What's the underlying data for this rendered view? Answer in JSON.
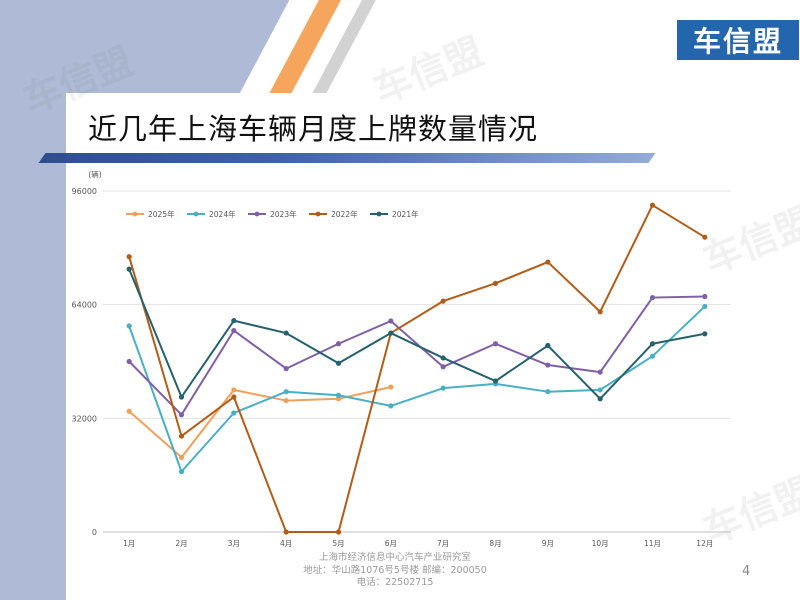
{
  "slide": {
    "title": "近几年上海车辆月度上牌数量情况",
    "logo": "车信盟",
    "watermark": "车信盟",
    "page_number": "4",
    "footer": {
      "line1": "上海市经济信息中心汽车产业研究室",
      "line2": "地址：华山路1076号5号楼    邮编：200050",
      "line3": "电话：22502715"
    }
  },
  "colors": {
    "band": "#aebad6",
    "logo_bg": "#2466ad",
    "accent_orange": "#f6a55c"
  },
  "chart_data": {
    "type": "line",
    "unit_label": "(辆)",
    "categories": [
      "1月",
      "2月",
      "3月",
      "4月",
      "5月",
      "6月",
      "7月",
      "8月",
      "9月",
      "10月",
      "11月",
      "12月"
    ],
    "ylim": [
      0,
      96000
    ],
    "yticks": [
      0,
      32000,
      64000,
      96000
    ],
    "ytick_labels": [
      "0",
      "32000",
      "64000",
      "96000"
    ],
    "grid": true,
    "legend_position": "top-left",
    "series": [
      {
        "name": "2025年",
        "color": "#f0a05a",
        "values": [
          34000,
          21000,
          40000,
          37000,
          37500,
          40800,
          null,
          null,
          null,
          null,
          null,
          null
        ]
      },
      {
        "name": "2024年",
        "color": "#4aafc4",
        "values": [
          58000,
          17000,
          33500,
          39500,
          38500,
          35500,
          40500,
          41700,
          39500,
          40000,
          49500,
          63500
        ]
      },
      {
        "name": "2023年",
        "color": "#7f60a6",
        "values": [
          48000,
          33000,
          56700,
          46000,
          53000,
          59400,
          46500,
          53000,
          47000,
          45000,
          66000,
          66300
        ]
      },
      {
        "name": "2022年",
        "color": "#b35c17",
        "values": [
          77500,
          27000,
          38000,
          0,
          0,
          56000,
          65000,
          70000,
          76000,
          62000,
          92000,
          83000
        ]
      },
      {
        "name": "2021年",
        "color": "#25626e",
        "values": [
          74000,
          38000,
          59500,
          56000,
          47500,
          56000,
          49000,
          42500,
          52500,
          37500,
          53000,
          55800
        ]
      }
    ]
  }
}
